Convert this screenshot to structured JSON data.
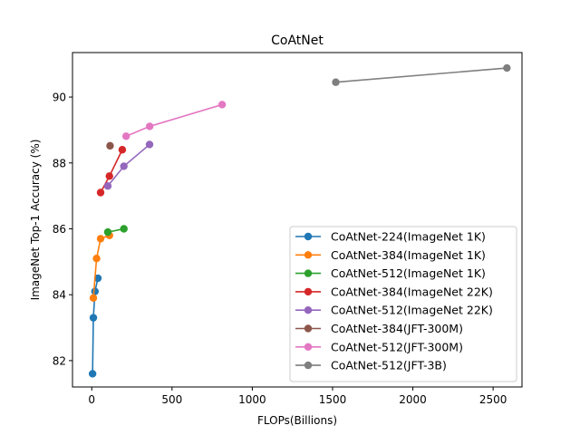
{
  "chart_data": {
    "type": "line",
    "title": "CoAtNet",
    "xlabel": "FLOPs(Billions)",
    "ylabel": "ImageNet Top-1 Accuracy (%)",
    "xlim": [
      -120,
      2680
    ],
    "ylim": [
      81.2,
      91.35
    ],
    "xticks": [
      0,
      500,
      1000,
      1500,
      2000,
      2500
    ],
    "yticks": [
      82,
      84,
      86,
      88,
      90
    ],
    "grid": false,
    "legend_position": "lower-right",
    "series": [
      {
        "name": "CoAtNet-224(ImageNet 1K)",
        "color": "#1f77b4",
        "x": [
          5,
          10,
          20,
          38
        ],
        "y": [
          81.6,
          83.3,
          84.1,
          84.5
        ]
      },
      {
        "name": "CoAtNet-384(ImageNet 1K)",
        "color": "#ff7f0e",
        "x": [
          10,
          30,
          55,
          110
        ],
        "y": [
          83.9,
          85.1,
          85.7,
          85.8
        ]
      },
      {
        "name": "CoAtNet-512(ImageNet 1K)",
        "color": "#2ca02c",
        "x": [
          100,
          200
        ],
        "y": [
          85.9,
          86.0
        ]
      },
      {
        "name": "CoAtNet-384(ImageNet 22K)",
        "color": "#d62728",
        "x": [
          55,
          110,
          190
        ],
        "y": [
          87.1,
          87.6,
          88.4
        ]
      },
      {
        "name": "CoAtNet-512(ImageNet 22K)",
        "color": "#9467bd",
        "x": [
          100,
          200,
          360
        ],
        "y": [
          87.3,
          87.9,
          88.56
        ]
      },
      {
        "name": "CoAtNet-384(JFT-300M)",
        "color": "#8c564b",
        "x": [
          114
        ],
        "y": [
          88.52
        ]
      },
      {
        "name": "CoAtNet-512(JFT-300M)",
        "color": "#e377c2",
        "x": [
          214,
          361,
          812
        ],
        "y": [
          88.81,
          89.11,
          89.77
        ]
      },
      {
        "name": "CoAtNet-512(JFT-3B)",
        "color": "#7f7f7f",
        "x": [
          1520,
          2586
        ],
        "y": [
          90.45,
          90.88
        ]
      }
    ]
  }
}
